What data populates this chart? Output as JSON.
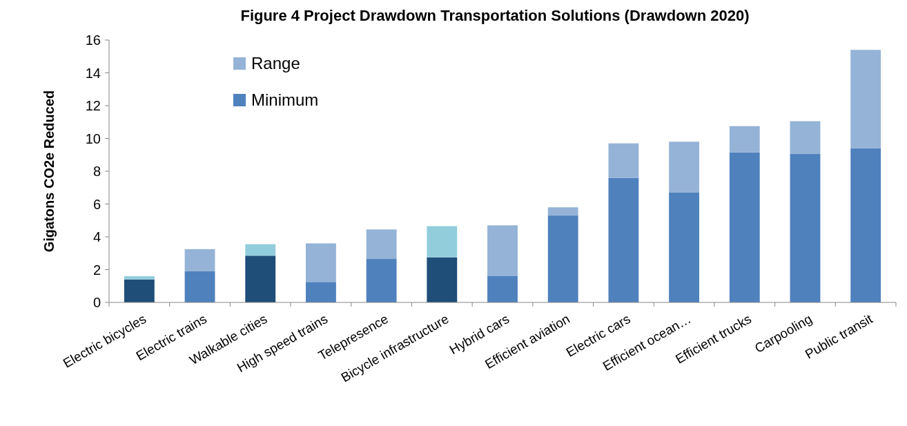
{
  "chart_data": {
    "type": "bar",
    "title": "Figure 4   Project Drawdown Transportation Solutions (Drawdown 2020)",
    "ylabel": "Gigatons CO2e Reduced",
    "categories": [
      "Electric bicycles",
      "Electric trains",
      "Walkable cities",
      "High speed trains",
      "Telepresence",
      "Bicycle infrastructure",
      "Hybrid cars",
      "Efficient aviation",
      "Electric cars",
      "Efficient ocean…",
      "Efficient trucks",
      "Carpooling",
      "Public transit"
    ],
    "stacked": true,
    "ylim": [
      0,
      16
    ],
    "yticks": [
      0,
      2,
      4,
      6,
      8,
      10,
      12,
      14,
      16
    ],
    "grid": false,
    "legend": "top left",
    "series": [
      {
        "name": "Minimum",
        "color": "#4f81bd",
        "colors": [
          "#1f4e79",
          "#4f81bd",
          "#1f4e79",
          "#4f81bd",
          "#4f81bd",
          "#1f4e79",
          "#4f81bd",
          "#4f81bd",
          "#4f81bd",
          "#4f81bd",
          "#4f81bd",
          "#4f81bd",
          "#4f81bd"
        ],
        "values": [
          1.4,
          1.9,
          2.85,
          1.25,
          2.65,
          2.75,
          1.6,
          5.3,
          7.6,
          6.7,
          9.15,
          9.05,
          9.4
        ]
      },
      {
        "name": "Range",
        "color": "#95b3d7",
        "colors": [
          "#92cddc",
          "#95b3d7",
          "#92cddc",
          "#95b3d7",
          "#95b3d7",
          "#92cddc",
          "#95b3d7",
          "#95b3d7",
          "#95b3d7",
          "#95b3d7",
          "#95b3d7",
          "#95b3d7",
          "#95b3d7"
        ],
        "values": [
          0.2,
          1.35,
          0.7,
          2.35,
          1.8,
          1.9,
          3.1,
          0.5,
          2.1,
          3.1,
          1.6,
          2.0,
          6.0
        ]
      }
    ]
  }
}
